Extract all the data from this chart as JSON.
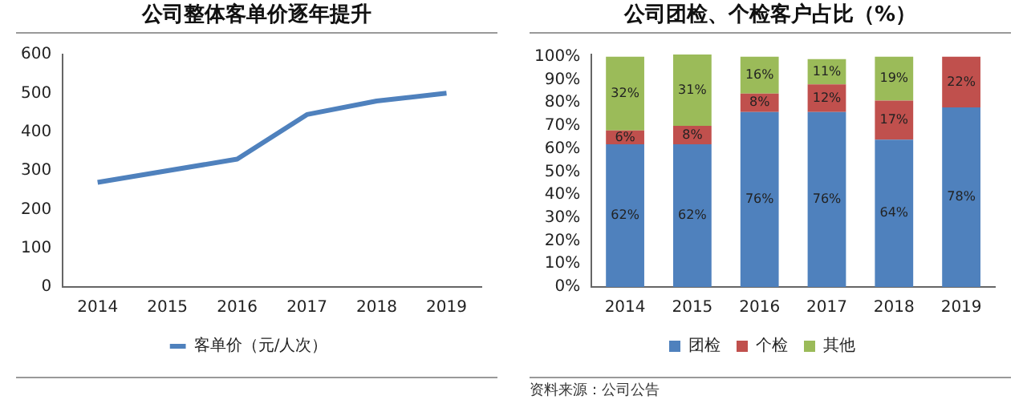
{
  "chart_data": [
    {
      "type": "line",
      "title": "公司整体客单价逐年提升",
      "categories": [
        "2014",
        "2015",
        "2016",
        "2017",
        "2018",
        "2019"
      ],
      "series": [
        {
          "name": "客单价（元/人次）",
          "color": "#4f81bd",
          "values": [
            270,
            300,
            330,
            445,
            480,
            500
          ]
        }
      ],
      "ylim": [
        0,
        600
      ],
      "yticks": [
        0,
        100,
        200,
        300,
        400,
        500,
        600
      ],
      "legend": "bottom"
    },
    {
      "type": "bar",
      "title": "公司团检、个检客户占比（%）",
      "categories": [
        "2014",
        "2015",
        "2016",
        "2017",
        "2018",
        "2019"
      ],
      "stacked": true,
      "series": [
        {
          "name": "团检",
          "color": "#4f81bd",
          "values": [
            62,
            62,
            76,
            76,
            64,
            78
          ],
          "value_labels": [
            "62%",
            "62%",
            "76%",
            "76%",
            "64%",
            "78%"
          ]
        },
        {
          "name": "个检",
          "color": "#c0504d",
          "values": [
            6,
            8,
            8,
            12,
            17,
            22
          ],
          "value_labels": [
            "6%",
            "8%",
            "8%",
            "12%",
            "17%",
            "22%"
          ]
        },
        {
          "name": "其他",
          "color": "#9bbb59",
          "values": [
            32,
            31,
            16,
            11,
            19,
            null
          ],
          "value_labels": [
            "32%",
            "31%",
            "16%",
            "11%",
            "19%",
            null
          ]
        }
      ],
      "ylim": [
        0,
        101
      ],
      "yticks": [
        {
          "value": 0,
          "label": "0%"
        },
        {
          "value": 10,
          "label": "10%"
        },
        {
          "value": 20,
          "label": "20%"
        },
        {
          "value": 30,
          "label": "30%"
        },
        {
          "value": 40,
          "label": "40%"
        },
        {
          "value": 50,
          "label": "50%"
        },
        {
          "value": 60,
          "label": "60%"
        },
        {
          "value": 70,
          "label": "70%"
        },
        {
          "value": 80,
          "label": "80%"
        },
        {
          "value": 90,
          "label": "90%"
        },
        {
          "value": 100,
          "label": "100%"
        }
      ],
      "legend": "bottom",
      "annotations": [
        "资料来源：公司公告"
      ]
    }
  ]
}
